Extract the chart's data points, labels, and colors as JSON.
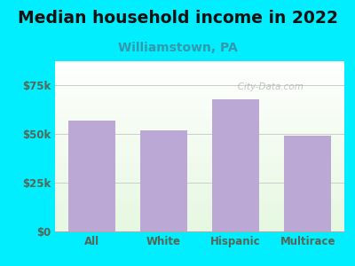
{
  "title": "Median household income in 2022",
  "subtitle": "Williamstown, PA",
  "categories": [
    "All",
    "White",
    "Hispanic",
    "Multirace"
  ],
  "values": [
    57000,
    52000,
    68000,
    49000
  ],
  "bar_color": "#bba8d4",
  "title_fontsize": 13.5,
  "subtitle_fontsize": 10,
  "subtitle_color": "#3399aa",
  "tick_label_color": "#556655",
  "background_color": "#00eeff",
  "ylim": [
    0,
    87500
  ],
  "yticks": [
    0,
    25000,
    50000,
    75000
  ],
  "ytick_labels": [
    "$0",
    "$25k",
    "$50k",
    "$75k"
  ],
  "watermark": "   City-Data.com"
}
